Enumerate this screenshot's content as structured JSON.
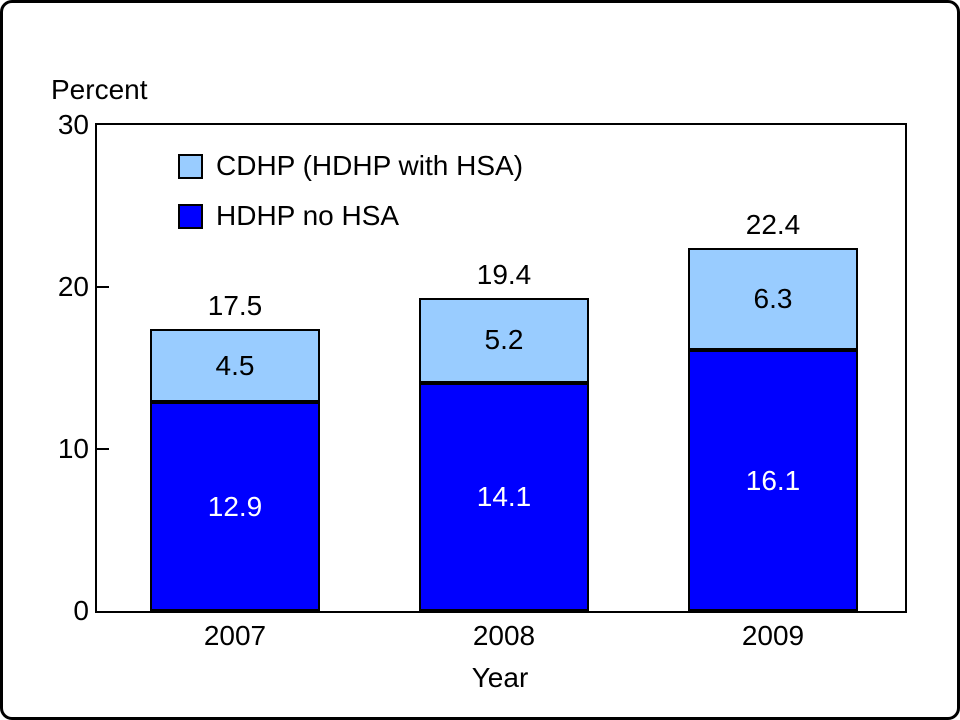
{
  "chart_data": {
    "type": "bar",
    "stacked": true,
    "title": "",
    "ylabel": "Percent",
    "xlabel": "Year",
    "ylim": [
      0,
      30
    ],
    "yticks": [
      0,
      10,
      20,
      30
    ],
    "grid": false,
    "legend_position": "top-left-inside",
    "categories": [
      "2007",
      "2008",
      "2009"
    ],
    "series": [
      {
        "name": "CDHP (HDHP with HSA)",
        "values": [
          4.5,
          5.2,
          6.3
        ],
        "color": "#99ccff",
        "text_color": "#000000"
      },
      {
        "name": "HDHP no HSA",
        "values": [
          12.9,
          14.1,
          16.1
        ],
        "color": "#0000ff",
        "text_color": "#ffffff"
      }
    ],
    "totals": [
      17.5,
      19.4,
      22.4
    ]
  }
}
